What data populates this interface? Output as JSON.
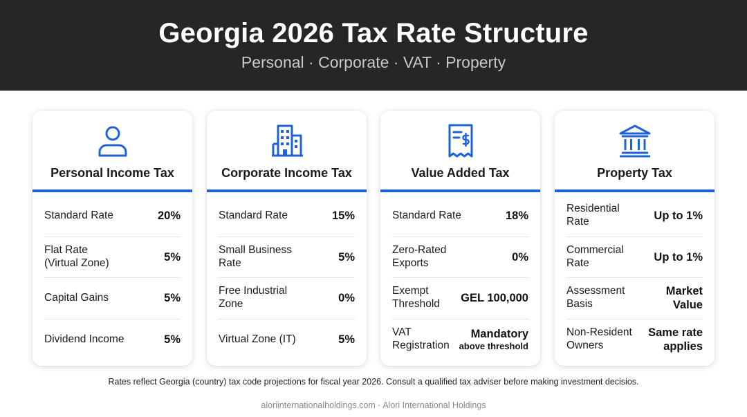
{
  "header": {
    "title": "Georgia 2026 Tax Rate Structure",
    "subtitle": "Personal · Corporate · VAT · Property"
  },
  "colors": {
    "accent": "#1e63d6",
    "header_bg": "#262626"
  },
  "cards": [
    {
      "icon": "person-icon",
      "title": "Personal Income Tax",
      "rows": [
        {
          "label": "Standard Rate",
          "value": "20%"
        },
        {
          "label": "Flat Rate (Virtual Zone)",
          "value": "5%"
        },
        {
          "label": "Capital Gains",
          "value": "5%"
        },
        {
          "label": "Dividend Income",
          "value": "5%"
        }
      ]
    },
    {
      "icon": "building-icon",
      "title": "Corporate Income Tax",
      "rows": [
        {
          "label": "Standard Rate",
          "value": "15%"
        },
        {
          "label": "Small Business Rate",
          "value": "5%"
        },
        {
          "label": "Free Industrial Zone",
          "value": "0%"
        },
        {
          "label": "Virtual Zone (IT)",
          "value": "5%"
        }
      ]
    },
    {
      "icon": "receipt-dollar-icon",
      "title": "Value Added Tax",
      "rows": [
        {
          "label": "Standard Rate",
          "value": "18%"
        },
        {
          "label": "Zero-Rated Exports",
          "value": "0%"
        },
        {
          "label": "Exempt Threshold",
          "value": "GEL 100,000"
        },
        {
          "label": "VAT Registration",
          "value": "Mandatory",
          "value_sub": "above threshold"
        }
      ]
    },
    {
      "icon": "bank-icon",
      "title": "Property Tax",
      "rows": [
        {
          "label": "Residential Rate",
          "value": "Up to 1%"
        },
        {
          "label": "Commercial Rate",
          "value": "Up to 1%"
        },
        {
          "label": "Assessment Basis",
          "value": "Market Value"
        },
        {
          "label": "Non-Resident Owners",
          "value": "Same rate applies"
        }
      ]
    }
  ],
  "footnote": "Rates reflect Georgia (country) tax code projections for fiscal year 2026. Consult a qualified tax adviser before making investment decisios.",
  "footer": "aloriinternationalholdings.com · Alori International Holdings"
}
